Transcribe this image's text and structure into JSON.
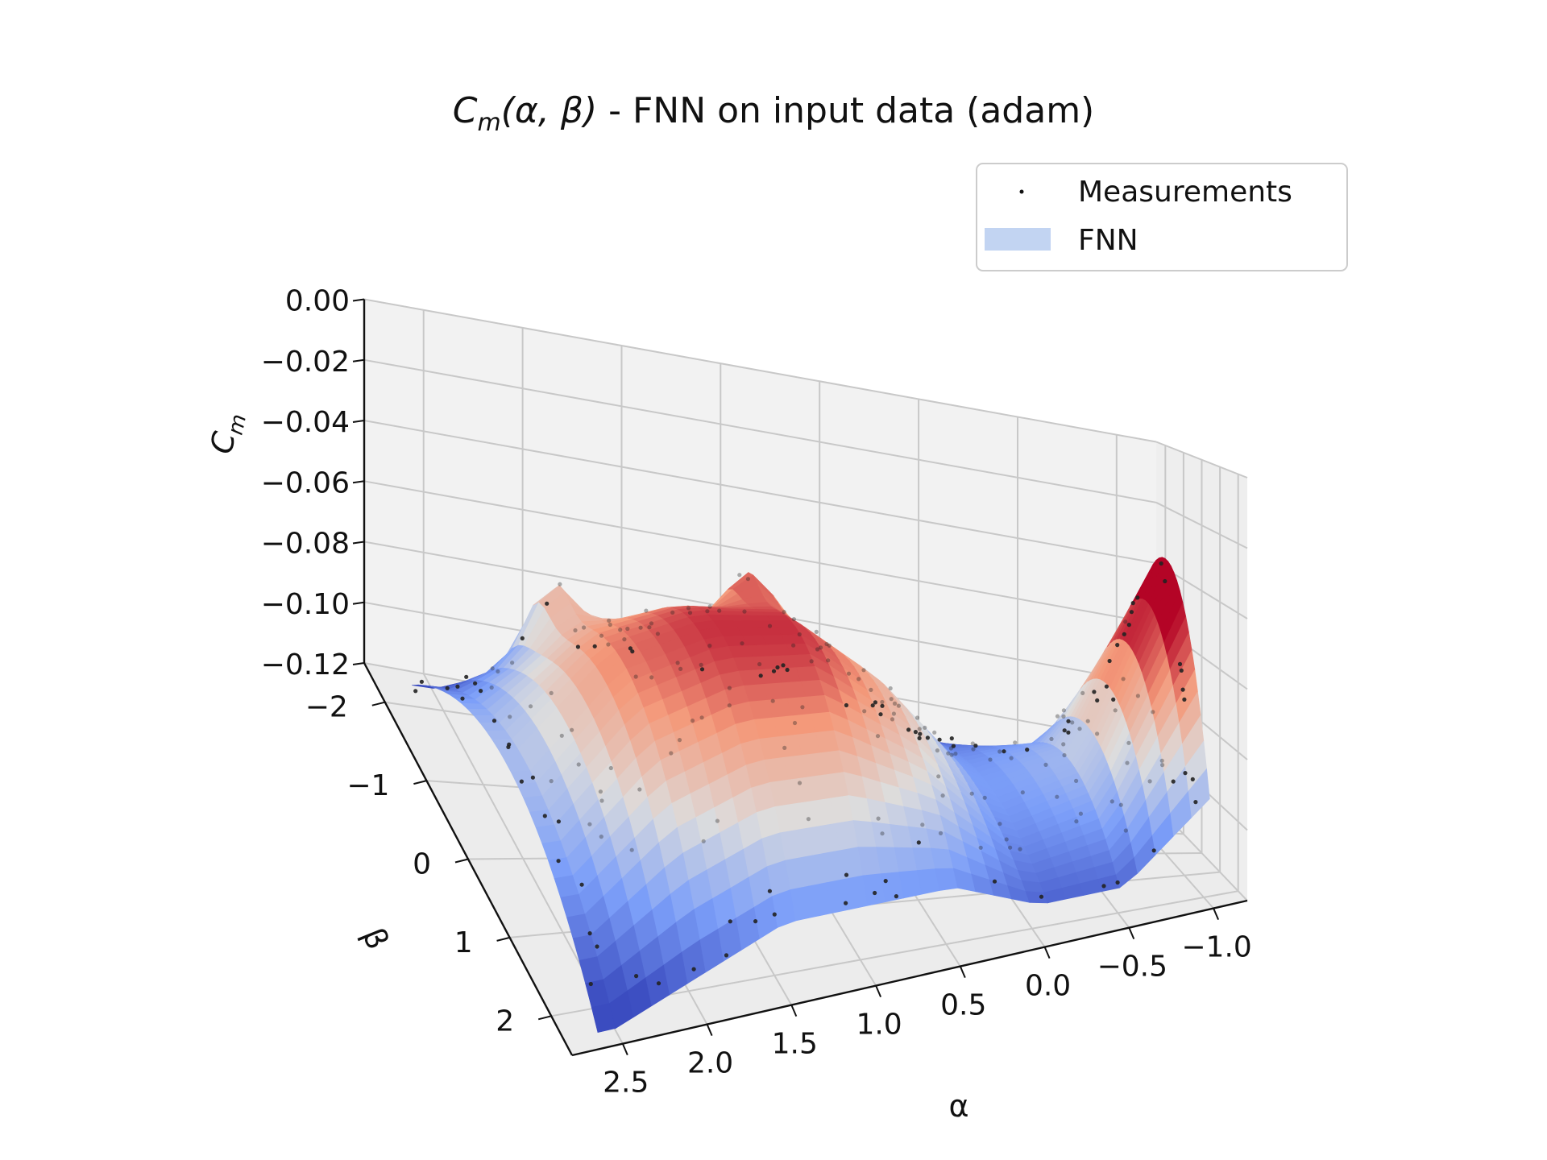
{
  "chart_data": {
    "type": "surface3d",
    "title": "C_m(α, β) - FNN on input data (adam)",
    "title_parts": {
      "symbol": "C",
      "subscript": "m",
      "args": "(α, β)",
      "rest": " - FNN on input data (adam)"
    },
    "xlabel": "α",
    "ylabel": "β",
    "zlabel": {
      "symbol": "C",
      "subscript": "m"
    },
    "xlim": [
      -1.2,
      2.8
    ],
    "ylim": [
      -2.5,
      2.5
    ],
    "zlim": [
      -0.12,
      0.0
    ],
    "x_ticks": [
      "−1.0",
      "−0.5",
      "0.0",
      "0.5",
      "1.0",
      "1.5",
      "2.0",
      "2.5"
    ],
    "x_tick_values": [
      -1.0,
      -0.5,
      0.0,
      0.5,
      1.0,
      1.5,
      2.0,
      2.5
    ],
    "y_ticks": [
      "−2",
      "−1",
      "0",
      "1",
      "2"
    ],
    "y_tick_values": [
      -2,
      -1,
      0,
      1,
      2
    ],
    "z_ticks": [
      "0.00",
      "−0.02",
      "−0.04",
      "−0.06",
      "−0.08",
      "−0.10",
      "−0.12"
    ],
    "z_tick_values": [
      0.0,
      -0.02,
      -0.04,
      -0.06,
      -0.08,
      -0.1,
      -0.12
    ],
    "grid": true,
    "colormap": "coolwarm",
    "legend": {
      "placement": "top-right",
      "entries": [
        {
          "label": "Measurements",
          "kind": "scatter",
          "color": "#111111"
        },
        {
          "label": "FNN",
          "kind": "surface",
          "color": "#c2d4f2"
        }
      ]
    },
    "surface_profile": {
      "description_values": "approximate C_m of the FNN surface along α (for β≈0) and its bowl shape across β",
      "alpha": [
        -1.0,
        -0.5,
        0.0,
        0.5,
        1.0,
        1.5,
        2.0,
        2.5
      ],
      "cm_center": [
        -0.03,
        -0.09,
        -0.1,
        -0.07,
        -0.05,
        -0.05,
        -0.06,
        -0.09
      ],
      "cm_edge": [
        -0.09,
        -0.11,
        -0.11,
        -0.1,
        -0.1,
        -0.1,
        -0.11,
        -0.12
      ]
    },
    "colors": {
      "pane": "#f2f2f2",
      "grid": "#c8c8c8",
      "axis": "#111111",
      "point": "#222222",
      "legend_patch": "#c2d4f2",
      "legend_border": "#cccccc"
    }
  }
}
